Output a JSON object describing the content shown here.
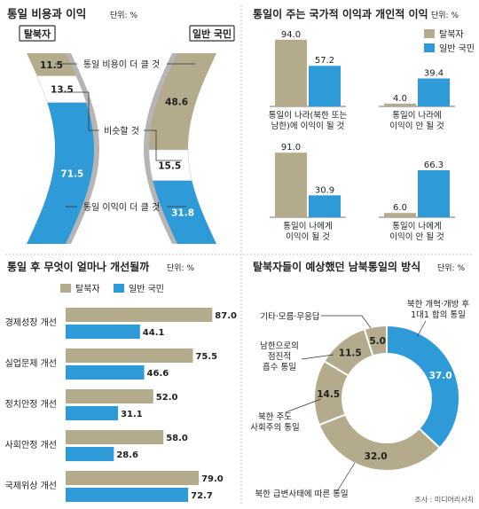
{
  "colors": {
    "defector": "#b3ab8c",
    "citizen": "#2f9ad8",
    "label_bg": "#ffffff",
    "text": "#222222",
    "divider": "#c8c8c8",
    "arc_shadow": "#b5b5b5"
  },
  "chart_data": [
    {
      "id": "cost-benefit",
      "type": "bar",
      "title": "통일 비용과 이익",
      "unit": "단위: %",
      "groups": [
        "탈북자",
        "일반 국민"
      ],
      "categories": [
        "통일 비용이 더 클 것",
        "비슷할 것",
        "통일 이익이 더 클 것"
      ],
      "series": [
        {
          "name": "탈북자",
          "values": [
            11.5,
            13.5,
            71.5
          ]
        },
        {
          "name": "일반 국민",
          "values": [
            48.6,
            15.5,
            31.8
          ]
        }
      ]
    },
    {
      "id": "national-personal",
      "type": "bar",
      "title": "통일이 주는 국가적 이익과 개인적 이익",
      "unit": "단위: %",
      "legend": [
        "탈북자",
        "일반 국민"
      ],
      "categories": [
        "통일이 나라(북한 또는 남한)에 이익이 될 것",
        "통일이 나라에 이익이 안 될 것",
        "통일이 나에게 이익이 될 것",
        "통일이 나에게 이익이 안 될 것"
      ],
      "category_lines": [
        [
          "통일이 나라(북한 또는",
          "남한)에 이익이 될 것"
        ],
        [
          "통일이 나라에",
          "이익이 안 될 것"
        ],
        [
          "통일이 나에게",
          "이익이 될 것"
        ],
        [
          "통일이 나에게",
          "이익이 안 될 것"
        ]
      ],
      "series": [
        {
          "name": "탈북자",
          "values": [
            94.0,
            4.0,
            91.0,
            6.0
          ]
        },
        {
          "name": "일반 국민",
          "values": [
            57.2,
            39.4,
            30.9,
            66.3
          ]
        }
      ],
      "ylim": [
        0,
        100
      ]
    },
    {
      "id": "improvement",
      "type": "bar",
      "orientation": "horizontal",
      "title": "통일 후 무엇이 얼마나 개선될까",
      "unit": "단위: %",
      "legend": [
        "탈북자",
        "일반 국민"
      ],
      "categories": [
        "경제성장 개선",
        "실업문제 개선",
        "정치안정 개선",
        "사회안정 개선",
        "국제위상 개선"
      ],
      "series": [
        {
          "name": "탈북자",
          "values": [
            87.0,
            75.5,
            52.0,
            58.0,
            79.0
          ]
        },
        {
          "name": "일반 국민",
          "values": [
            44.1,
            46.6,
            31.1,
            28.6,
            72.7
          ]
        }
      ],
      "xlim": [
        0,
        100
      ]
    },
    {
      "id": "unification-method",
      "type": "pie",
      "donut": true,
      "title": "탈북자들이 예상했던 남북통일의 방식",
      "unit": "단위: %",
      "labels": [
        "북한 개혁·개방 후 1대1 합의 통일",
        "북한 급변사태에 따른 통일",
        "북한 주도 사회주의 통일",
        "남한으로의 점진적 흡수 통일",
        "기타·모름·무응답"
      ],
      "label_lines": [
        [
          "북한 개혁·개방 후",
          "1대1 합의 통일"
        ],
        [
          "북한 급변사태에 따른 통일"
        ],
        [
          "북한 주도",
          "사회주의 통일"
        ],
        [
          "남한으로의",
          "점진적",
          "흡수 통일"
        ],
        [
          "기타·모름·무응답"
        ]
      ],
      "values": [
        37.0,
        32.0,
        14.5,
        11.5,
        5.0
      ],
      "highlight_index": 0,
      "source": "조사 : 미디어리서치"
    }
  ]
}
